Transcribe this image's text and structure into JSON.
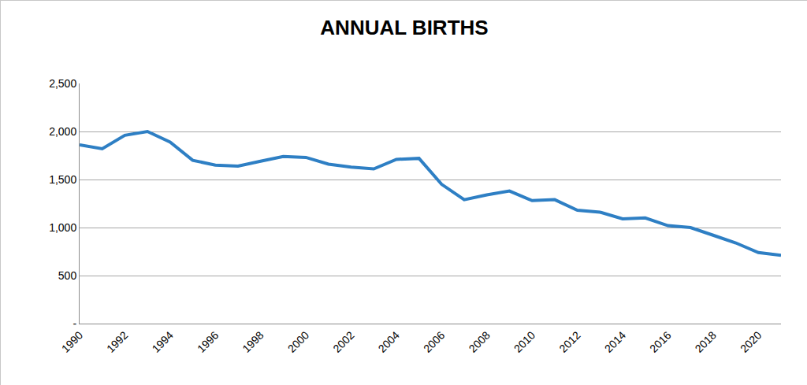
{
  "chart_data": {
    "type": "line",
    "title": "ANNUAL BIRTHS",
    "x": [
      1990,
      1991,
      1992,
      1993,
      1994,
      1995,
      1996,
      1997,
      1998,
      1999,
      2000,
      2001,
      2002,
      2003,
      2004,
      2005,
      2006,
      2007,
      2008,
      2009,
      2010,
      2011,
      2012,
      2013,
      2014,
      2015,
      2016,
      2017,
      2018,
      2019,
      2020,
      2021
    ],
    "values": [
      1860,
      1820,
      1960,
      2000,
      1890,
      1700,
      1650,
      1640,
      1690,
      1740,
      1730,
      1660,
      1630,
      1610,
      1710,
      1720,
      1450,
      1290,
      1340,
      1380,
      1280,
      1290,
      1180,
      1160,
      1090,
      1100,
      1020,
      1000,
      920,
      840,
      740,
      710
    ],
    "color": "#2e7fc4",
    "xlim": [
      1990,
      2021
    ],
    "xticks": [
      1990,
      1992,
      1994,
      1996,
      1998,
      2000,
      2002,
      2004,
      2006,
      2008,
      2010,
      2012,
      2014,
      2016,
      2018,
      2020
    ],
    "ylim": [
      0,
      2500
    ],
    "yticks": [
      {
        "value": 0,
        "label": "-"
      },
      500,
      {
        "value": 1000,
        "label": "1,000"
      },
      {
        "value": 1500,
        "label": "1,500"
      },
      {
        "value": 2000,
        "label": "2,000"
      },
      {
        "value": 2500,
        "label": "2,500"
      }
    ],
    "grid": true
  }
}
